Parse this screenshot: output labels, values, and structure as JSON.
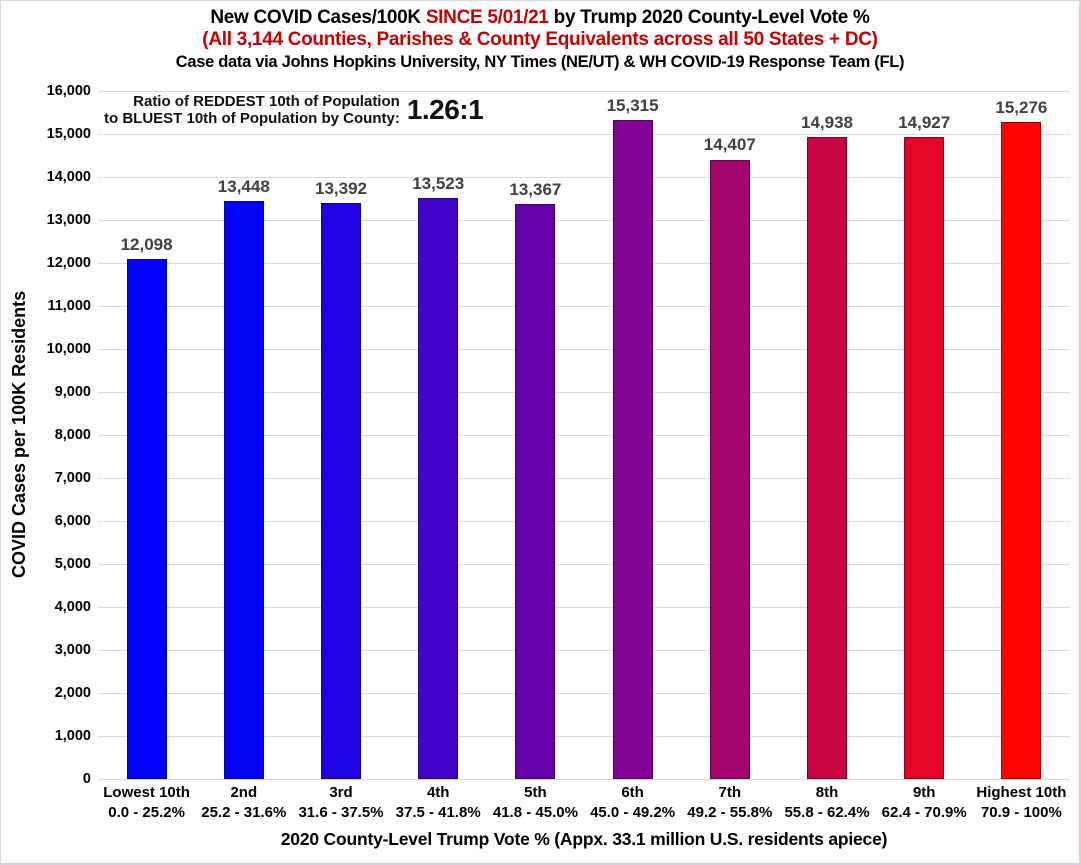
{
  "chart_data": {
    "type": "bar",
    "title_line1": {
      "pre": "New COVID Cases/100K ",
      "highlight": "SINCE 5/01/21",
      "post": " by Trump 2020 County-Level Vote %"
    },
    "title_line2": "(All 3,144 Counties, Parishes & County Equivalents across all 50 States + DC)",
    "title_line3": "Case data via Johns Hopkins University, NY Times (NE/UT) & WH COVID-19 Response Team (FL)",
    "annotation": {
      "line1": "Ratio of REDDEST 10th of Population",
      "line2": "to BLUEST 10th of Population by County:",
      "value": "1.26:1"
    },
    "ylabel": "COVID Cases per 100K Residents",
    "xlabel": "2020 County-Level Trump Vote % (Appx. 33.1 million U.S. residents apiece)",
    "ylim": [
      0,
      16000
    ],
    "ytick_step": 1000,
    "grid": true,
    "legend": "none",
    "categories": [
      "Lowest 10th",
      "2nd",
      "3rd",
      "4th",
      "5th",
      "6th",
      "7th",
      "8th",
      "9th",
      "Highest 10th"
    ],
    "category_ranges": [
      "0.0 - 25.2%",
      "25.2 - 31.6%",
      "31.6 - 37.5%",
      "37.5 - 41.8%",
      "41.8 - 45.0%",
      "45.0 - 49.2%",
      "49.2 - 55.8%",
      "55.8 - 62.4%",
      "62.4 - 70.9%",
      "70.9 - 100%"
    ],
    "values": [
      12098,
      13448,
      13392,
      13523,
      13367,
      15315,
      14407,
      14938,
      14927,
      15276
    ],
    "bar_colors": [
      "#0101fe",
      "#0505f8",
      "#1e05e4",
      "#4004ca",
      "#6304aa",
      "#820494",
      "#a40570",
      "#c80542",
      "#e20524",
      "#fd0503"
    ],
    "colors": {
      "title_highlight": "#c80000",
      "subtitle_red": "#c80000",
      "grid": "#d9d9d9",
      "value_label": "#404040"
    }
  }
}
